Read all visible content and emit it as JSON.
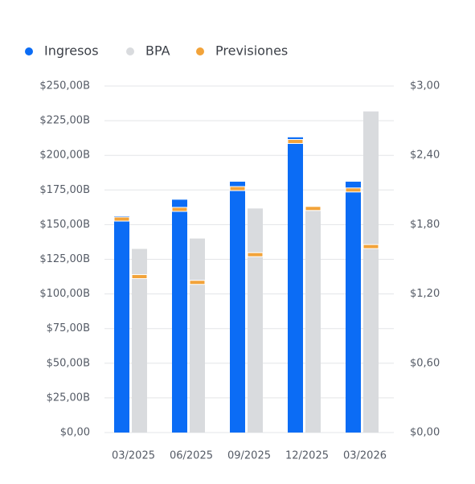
{
  "chart_data": {
    "type": "bar",
    "categories": [
      "03/2025",
      "06/2025",
      "09/2025",
      "12/2025",
      "03/2026"
    ],
    "series": [
      {
        "name": "Ingresos",
        "color": "#0b6cf5",
        "values": [
          156,
          168,
          181,
          213,
          181
        ]
      },
      {
        "name": "BPA",
        "color": "#d9dbde",
        "axis": "y2",
        "values": [
          1.59,
          1.68,
          1.94,
          1.92,
          2.78
        ]
      },
      {
        "name": "Previsiones",
        "color": "#f2a33a",
        "values": [
          154,
          161,
          176,
          210,
          175
        ],
        "values_y2": [
          1.35,
          1.3,
          1.54,
          1.94,
          1.61
        ]
      }
    ],
    "ylim": [
      0,
      250
    ],
    "yticks": [
      {
        "value": 0,
        "label": "$0,00"
      },
      {
        "value": 25,
        "label": "$25,00B"
      },
      {
        "value": 50,
        "label": "$50,00B"
      },
      {
        "value": 75,
        "label": "$75,00B"
      },
      {
        "value": 100,
        "label": "$100,00B"
      },
      {
        "value": 125,
        "label": "$125,00B"
      },
      {
        "value": 150,
        "label": "$150,00B"
      },
      {
        "value": 175,
        "label": "$175,00B"
      },
      {
        "value": 200,
        "label": "$200,00B"
      },
      {
        "value": 225,
        "label": "$225,00B"
      },
      {
        "value": 250,
        "label": "$250,00B"
      }
    ],
    "y2lim": [
      0,
      3
    ],
    "y2ticks": [
      {
        "value": 0,
        "label": "$0,00"
      },
      {
        "value": 0.6,
        "label": "$0,60"
      },
      {
        "value": 1.2,
        "label": "$1,20"
      },
      {
        "value": 1.8,
        "label": "$1,80"
      },
      {
        "value": 2.4,
        "label": "$2,40"
      },
      {
        "value": 3,
        "label": "$3,00"
      }
    ],
    "grid": true,
    "legend": "top-left"
  }
}
